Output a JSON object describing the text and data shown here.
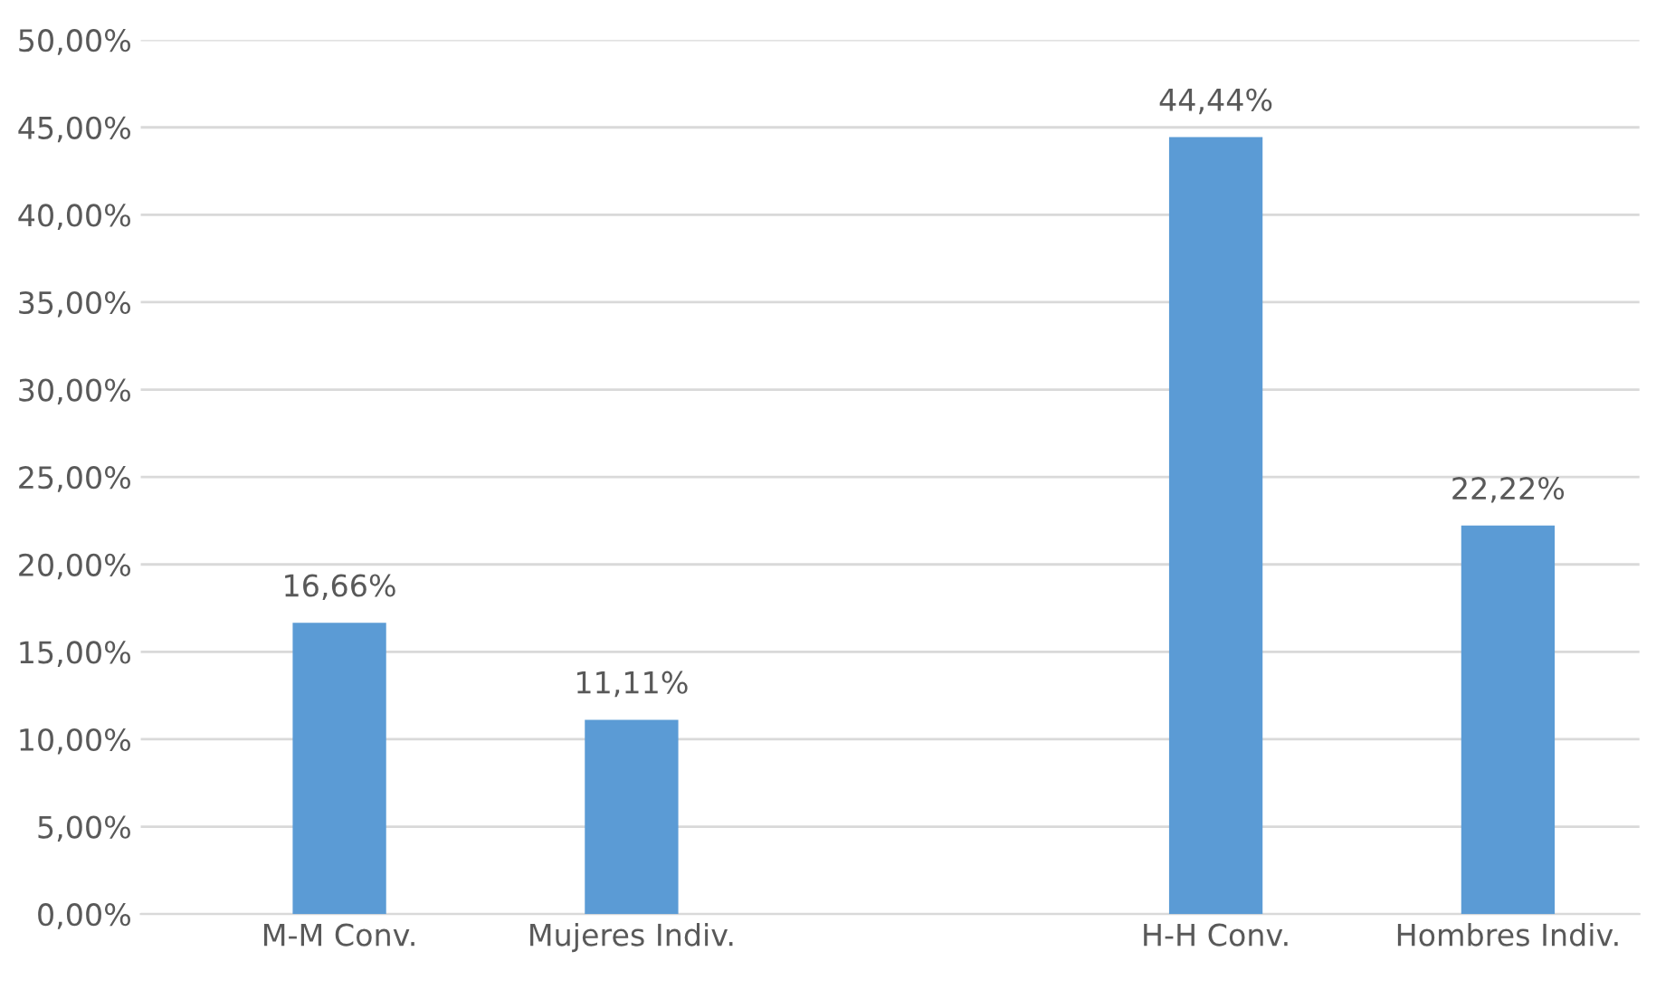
{
  "chart_data": {
    "type": "bar",
    "categories": [
      "M-M Conv.",
      "Mujeres Indiv.",
      null,
      "H-H Conv.",
      "Hombres Indiv."
    ],
    "series": [
      {
        "color": "#5b9bd5",
        "values": [
          16.66,
          11.11,
          null,
          44.44,
          22.22
        ],
        "value_labels": [
          "16,66%",
          "11,11%",
          null,
          "44,44%",
          "22,22%"
        ]
      }
    ],
    "ylim": [
      0,
      50
    ],
    "yticks": [
      {
        "value": 0,
        "label": "0,00%"
      },
      {
        "value": 5,
        "label": "5,00%"
      },
      {
        "value": 10,
        "label": "10,00%"
      },
      {
        "value": 15,
        "label": "15,00%"
      },
      {
        "value": 20,
        "label": "20,00%"
      },
      {
        "value": 25,
        "label": "25,00%"
      },
      {
        "value": 30,
        "label": "30,00%"
      },
      {
        "value": 35,
        "label": "35,00%"
      },
      {
        "value": 40,
        "label": "40,00%"
      },
      {
        "value": 45,
        "label": "45,00%"
      },
      {
        "value": 50,
        "label": "50,00%"
      }
    ],
    "grid": "y",
    "legend": false
  }
}
